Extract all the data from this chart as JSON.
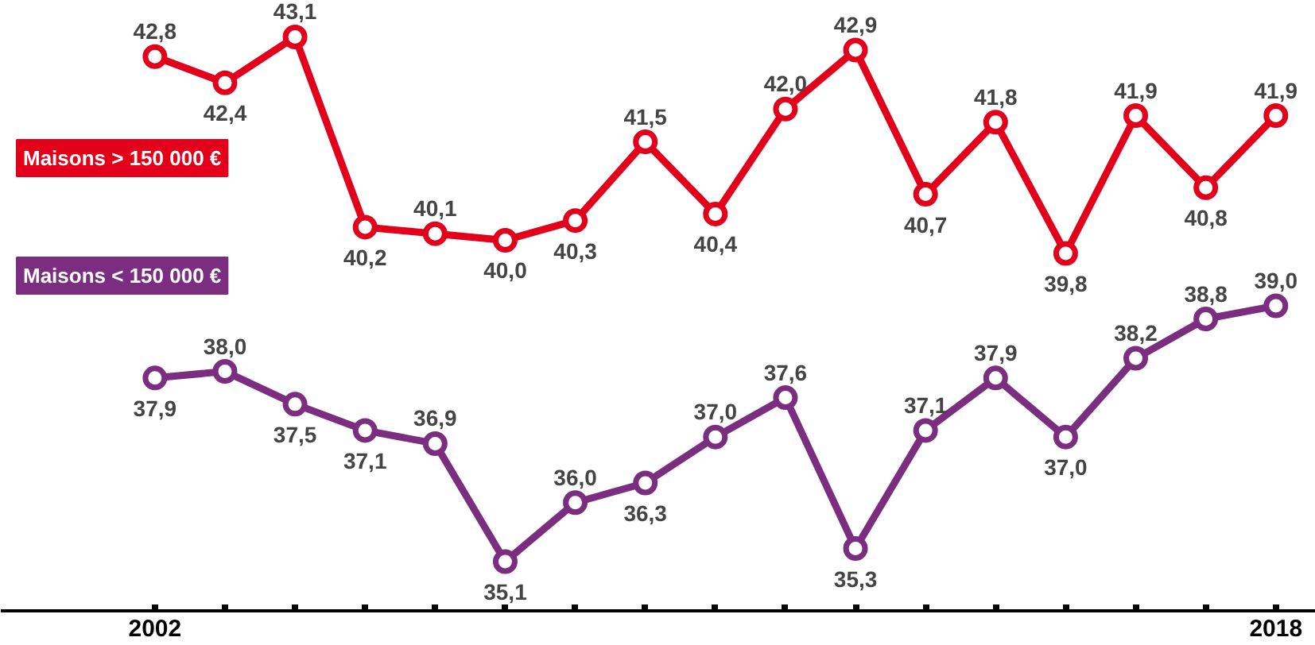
{
  "chart_data": {
    "type": "line",
    "categories": [
      "2002",
      null,
      null,
      null,
      null,
      null,
      null,
      null,
      null,
      null,
      null,
      null,
      null,
      null,
      null,
      null,
      "2018"
    ],
    "series": [
      {
        "name": "Maisons > 150 000 €",
        "color": "#e2001a",
        "values": [
          42.8,
          42.4,
          43.1,
          40.2,
          40.1,
          40.0,
          40.3,
          41.5,
          40.4,
          42.0,
          42.9,
          40.7,
          41.8,
          39.8,
          41.9,
          40.8,
          41.9
        ],
        "value_labels": [
          "42,8",
          "42,4",
          "43,1",
          "40,2",
          "40,1",
          "40,0",
          "40,3",
          "41,5",
          "40,4",
          "42,0",
          "42,9",
          "40,7",
          "41,8",
          "39,8",
          "41,9",
          "40,8",
          "41,9"
        ]
      },
      {
        "name": "Maisons < 150 000 €",
        "color": "#7b2d7f",
        "values": [
          37.9,
          38.0,
          37.5,
          37.1,
          36.9,
          35.1,
          36.0,
          36.3,
          37.0,
          37.6,
          35.3,
          37.1,
          37.9,
          37.0,
          38.2,
          38.8,
          39.0
        ],
        "value_labels": [
          "37,9",
          "38,0",
          "37,5",
          "37,1",
          "36,9",
          "35,1",
          "36,0",
          "36,3",
          "37,0",
          "37,6",
          "35,3",
          "37,1",
          "37,9",
          "37,0",
          "38,2",
          "38,8",
          "39,0"
        ]
      }
    ],
    "tick_labels": "x",
    "marker": "circle",
    "grid": false,
    "legend": false
  }
}
